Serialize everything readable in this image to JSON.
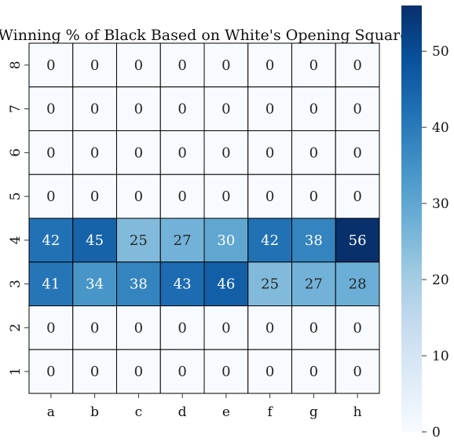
{
  "chart_data": {
    "type": "heatmap",
    "title": "Winning % of Black Based on White's Opening Square",
    "xlabel": "",
    "ylabel": "",
    "x_categories": [
      "a",
      "b",
      "c",
      "d",
      "e",
      "f",
      "g",
      "h"
    ],
    "y_categories": [
      "8",
      "7",
      "6",
      "5",
      "4",
      "3",
      "2",
      "1"
    ],
    "values": [
      [
        0,
        0,
        0,
        0,
        0,
        0,
        0,
        0
      ],
      [
        0,
        0,
        0,
        0,
        0,
        0,
        0,
        0
      ],
      [
        0,
        0,
        0,
        0,
        0,
        0,
        0,
        0
      ],
      [
        0,
        0,
        0,
        0,
        0,
        0,
        0,
        0
      ],
      [
        42,
        45,
        25,
        27,
        30,
        42,
        38,
        56
      ],
      [
        41,
        34,
        38,
        43,
        46,
        25,
        27,
        28
      ],
      [
        0,
        0,
        0,
        0,
        0,
        0,
        0,
        0
      ],
      [
        0,
        0,
        0,
        0,
        0,
        0,
        0,
        0
      ]
    ],
    "colorbar": {
      "colormap": "Blues",
      "range": [
        0,
        56
      ],
      "ticks": [
        0,
        10,
        20,
        30,
        40,
        50
      ]
    },
    "annotations": true,
    "grid": true
  }
}
